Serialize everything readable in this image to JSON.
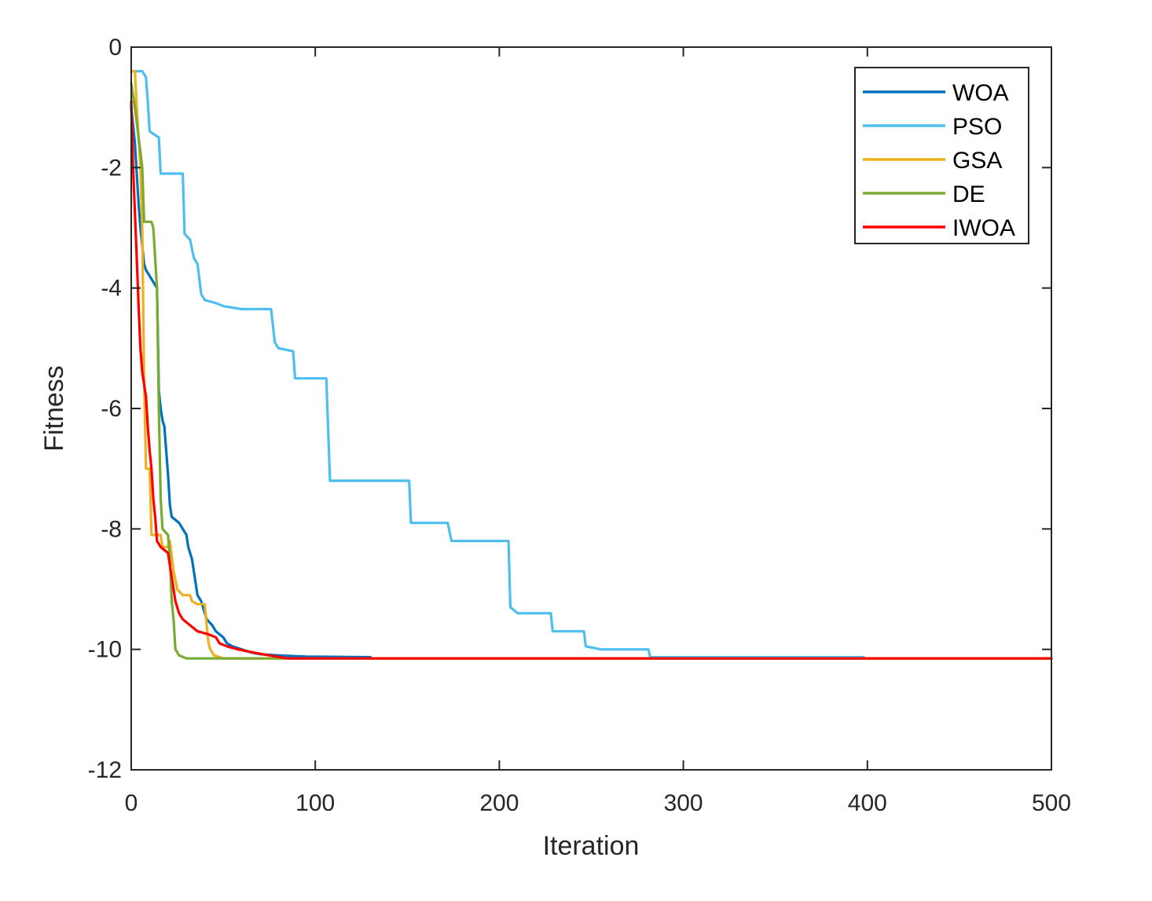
{
  "chart_data": {
    "type": "line",
    "title": "",
    "xlabel": "Iteration",
    "ylabel": "Fitness",
    "xlim": [
      0,
      500
    ],
    "ylim": [
      -12,
      0
    ],
    "xticks": [
      0,
      100,
      200,
      300,
      400,
      500
    ],
    "yticks": [
      -12,
      -10,
      -8,
      -6,
      -4,
      -2,
      0
    ],
    "xtick_labels": [
      "0",
      "100",
      "200",
      "300",
      "400",
      "500"
    ],
    "ytick_labels": [
      "-12",
      "-10",
      "-8",
      "-6",
      "-4",
      "-2",
      "0"
    ],
    "grid": false,
    "legend_position": "top-right",
    "series": [
      {
        "name": "WOA",
        "color": "#0072BD",
        "x_end": 130,
        "points": [
          [
            0,
            -1.0
          ],
          [
            2,
            -1.6
          ],
          [
            4,
            -2.6
          ],
          [
            5,
            -3.0
          ],
          [
            6,
            -3.3
          ],
          [
            7,
            -3.6
          ],
          [
            8,
            -3.7
          ],
          [
            10,
            -3.8
          ],
          [
            12,
            -3.9
          ],
          [
            14,
            -4.0
          ],
          [
            15,
            -5.7
          ],
          [
            16,
            -6.0
          ],
          [
            17,
            -6.2
          ],
          [
            18,
            -6.3
          ],
          [
            19,
            -6.7
          ],
          [
            20,
            -7.1
          ],
          [
            21,
            -7.6
          ],
          [
            22,
            -7.8
          ],
          [
            26,
            -7.9
          ],
          [
            28,
            -8.0
          ],
          [
            30,
            -8.1
          ],
          [
            31,
            -8.3
          ],
          [
            32,
            -8.4
          ],
          [
            33,
            -8.5
          ],
          [
            34,
            -8.7
          ],
          [
            35,
            -8.9
          ],
          [
            36,
            -9.1
          ],
          [
            38,
            -9.2
          ],
          [
            39,
            -9.3
          ],
          [
            40,
            -9.4
          ],
          [
            41,
            -9.5
          ],
          [
            44,
            -9.6
          ],
          [
            46,
            -9.7
          ],
          [
            50,
            -9.8
          ],
          [
            52,
            -9.9
          ],
          [
            55,
            -9.95
          ],
          [
            60,
            -10.0
          ],
          [
            65,
            -10.05
          ],
          [
            70,
            -10.08
          ],
          [
            80,
            -10.1
          ],
          [
            95,
            -10.12
          ],
          [
            130,
            -10.13
          ]
        ]
      },
      {
        "name": "PSO",
        "color": "#4DBEEE",
        "x_end": 398,
        "points": [
          [
            0,
            -0.4
          ],
          [
            6,
            -0.4
          ],
          [
            8,
            -0.5
          ],
          [
            9,
            -0.9
          ],
          [
            10,
            -1.4
          ],
          [
            15,
            -1.5
          ],
          [
            16,
            -2.1
          ],
          [
            28,
            -2.1
          ],
          [
            29,
            -3.1
          ],
          [
            32,
            -3.2
          ],
          [
            34,
            -3.5
          ],
          [
            36,
            -3.6
          ],
          [
            38,
            -4.1
          ],
          [
            40,
            -4.2
          ],
          [
            46,
            -4.25
          ],
          [
            50,
            -4.3
          ],
          [
            60,
            -4.35
          ],
          [
            76,
            -4.35
          ],
          [
            78,
            -4.9
          ],
          [
            80,
            -5.0
          ],
          [
            88,
            -5.05
          ],
          [
            89,
            -5.5
          ],
          [
            106,
            -5.5
          ],
          [
            108,
            -7.2
          ],
          [
            151,
            -7.2
          ],
          [
            152,
            -7.9
          ],
          [
            172,
            -7.9
          ],
          [
            174,
            -8.2
          ],
          [
            205,
            -8.2
          ],
          [
            206,
            -9.3
          ],
          [
            210,
            -9.4
          ],
          [
            228,
            -9.4
          ],
          [
            229,
            -9.7
          ],
          [
            246,
            -9.7
          ],
          [
            247,
            -9.95
          ],
          [
            255,
            -10.0
          ],
          [
            281,
            -10.0
          ],
          [
            282,
            -10.13
          ],
          [
            398,
            -10.13
          ]
        ]
      },
      {
        "name": "GSA",
        "color": "#EDB120",
        "x_end": 500,
        "points": [
          [
            0,
            -0.4
          ],
          [
            2,
            -0.4
          ],
          [
            3,
            -1.0
          ],
          [
            4,
            -1.5
          ],
          [
            5,
            -2.0
          ],
          [
            6,
            -3.0
          ],
          [
            7,
            -5.5
          ],
          [
            8,
            -7.0
          ],
          [
            10,
            -7.0
          ],
          [
            11,
            -8.1
          ],
          [
            14,
            -8.1
          ],
          [
            16,
            -8.1
          ],
          [
            17,
            -8.3
          ],
          [
            20,
            -8.3
          ],
          [
            21,
            -8.2
          ],
          [
            23,
            -8.7
          ],
          [
            25,
            -9.0
          ],
          [
            28,
            -9.1
          ],
          [
            32,
            -9.1
          ],
          [
            33,
            -9.2
          ],
          [
            36,
            -9.25
          ],
          [
            40,
            -9.25
          ],
          [
            41,
            -9.6
          ],
          [
            42,
            -9.9
          ],
          [
            43,
            -10.0
          ],
          [
            45,
            -10.1
          ],
          [
            50,
            -10.15
          ],
          [
            500,
            -10.15
          ]
        ]
      },
      {
        "name": "DE",
        "color": "#77AC30",
        "x_end": 500,
        "points": [
          [
            0,
            -0.6
          ],
          [
            2,
            -1.0
          ],
          [
            4,
            -1.5
          ],
          [
            6,
            -2.0
          ],
          [
            7,
            -2.9
          ],
          [
            11,
            -2.9
          ],
          [
            12,
            -3.0
          ],
          [
            13,
            -3.5
          ],
          [
            14,
            -4.0
          ],
          [
            15,
            -6.0
          ],
          [
            16,
            -7.5
          ],
          [
            17,
            -8.0
          ],
          [
            20,
            -8.1
          ],
          [
            21,
            -8.5
          ],
          [
            22,
            -9.2
          ],
          [
            23,
            -9.5
          ],
          [
            24,
            -10.0
          ],
          [
            26,
            -10.1
          ],
          [
            30,
            -10.15
          ],
          [
            500,
            -10.15
          ]
        ]
      },
      {
        "name": "IWOA",
        "color": "#FF0000",
        "x_end": 500,
        "points": [
          [
            0,
            -0.9
          ],
          [
            1,
            -2.0
          ],
          [
            3,
            -3.5
          ],
          [
            4,
            -4.3
          ],
          [
            5,
            -5.0
          ],
          [
            6,
            -5.4
          ],
          [
            8,
            -5.8
          ],
          [
            9,
            -6.3
          ],
          [
            10,
            -6.7
          ],
          [
            11,
            -7.0
          ],
          [
            12,
            -7.5
          ],
          [
            13,
            -7.8
          ],
          [
            14,
            -8.2
          ],
          [
            16,
            -8.3
          ],
          [
            20,
            -8.4
          ],
          [
            22,
            -8.8
          ],
          [
            24,
            -9.2
          ],
          [
            26,
            -9.4
          ],
          [
            28,
            -9.5
          ],
          [
            32,
            -9.6
          ],
          [
            36,
            -9.7
          ],
          [
            42,
            -9.75
          ],
          [
            46,
            -9.8
          ],
          [
            48,
            -9.9
          ],
          [
            52,
            -9.95
          ],
          [
            58,
            -10.0
          ],
          [
            66,
            -10.05
          ],
          [
            75,
            -10.1
          ],
          [
            85,
            -10.15
          ],
          [
            500,
            -10.15
          ]
        ]
      }
    ]
  }
}
